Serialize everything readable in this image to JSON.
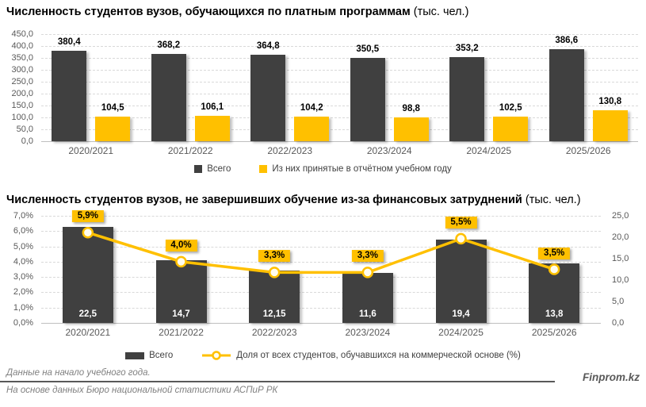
{
  "chart_data": [
    {
      "type": "bar",
      "title": "Численность студентов вузов, обучающихся по платным программам",
      "title_unit": " (тыс. чел.)",
      "categories": [
        "2020/2021",
        "2021/2022",
        "2022/2023",
        "2023/2024",
        "2024/2025",
        "2025/2026"
      ],
      "series": [
        {
          "name": "Всего",
          "color": "#404040",
          "values": [
            380.4,
            368.2,
            364.8,
            350.5,
            353.2,
            386.6
          ],
          "labels": [
            "380,4",
            "368,2",
            "364,8",
            "350,5",
            "353,2",
            "386,6"
          ]
        },
        {
          "name": "Из них принятые в отчётном учебном году",
          "color": "#FFC000",
          "values": [
            104.5,
            106.1,
            104.2,
            98.8,
            102.5,
            130.8
          ],
          "labels": [
            "104,5",
            "106,1",
            "104,2",
            "98,8",
            "102,5",
            "130,8"
          ]
        }
      ],
      "ylim": [
        0,
        450
      ],
      "yticks": [
        "450,0",
        "400,0",
        "350,0",
        "300,0",
        "250,0",
        "200,0",
        "150,0",
        "100,0",
        "50,0",
        "0,0"
      ],
      "grid": true,
      "legend_position": "bottom"
    },
    {
      "type": "bar+line",
      "title": "Численность студентов вузов, не завершивших обучение из-за финансовых затруднений",
      "title_unit": " (тыс. чел.)",
      "categories": [
        "2020/2021",
        "2021/2022",
        "2022/2023",
        "2023/2024",
        "2024/2025",
        "2025/2026"
      ],
      "bar_series": {
        "name": "Всего",
        "axis": "right",
        "color": "#404040",
        "values": [
          22.5,
          14.7,
          12.15,
          11.6,
          19.4,
          13.8
        ],
        "labels": [
          "22,5",
          "14,7",
          "12,15",
          "11,6",
          "19,4",
          "13,8"
        ]
      },
      "line_series": {
        "name": "Доля от всех студентов, обучавшихся на коммерческой основе (%)",
        "axis": "left",
        "color": "#FFC000",
        "values": [
          5.9,
          4.0,
          3.3,
          3.3,
          5.5,
          3.5
        ],
        "labels": [
          "5,9%",
          "4,0%",
          "3,3%",
          "3,3%",
          "5,5%",
          "3,5%"
        ]
      },
      "left_ylim": [
        0,
        7
      ],
      "left_yticks": [
        "7,0%",
        "6,0%",
        "5,0%",
        "4,0%",
        "3,0%",
        "2,0%",
        "1,0%",
        "0,0%"
      ],
      "right_ylim": [
        0,
        25
      ],
      "right_yticks": [
        "25,0",
        "20,0",
        "15,0",
        "10,0",
        "5,0",
        "0,0"
      ],
      "grid": true,
      "legend_position": "bottom"
    }
  ],
  "footer": {
    "note1": "Данные на начало учебного года.",
    "note2": "На основе данных Бюро национальной статистики АСПиР РК",
    "brand": "Finprom.kz"
  },
  "colors": {
    "bar_dark": "#404040",
    "accent_yellow": "#FFC000",
    "grid": "#D9D9D9",
    "axis_text": "#595959",
    "footer_text": "#808080"
  }
}
